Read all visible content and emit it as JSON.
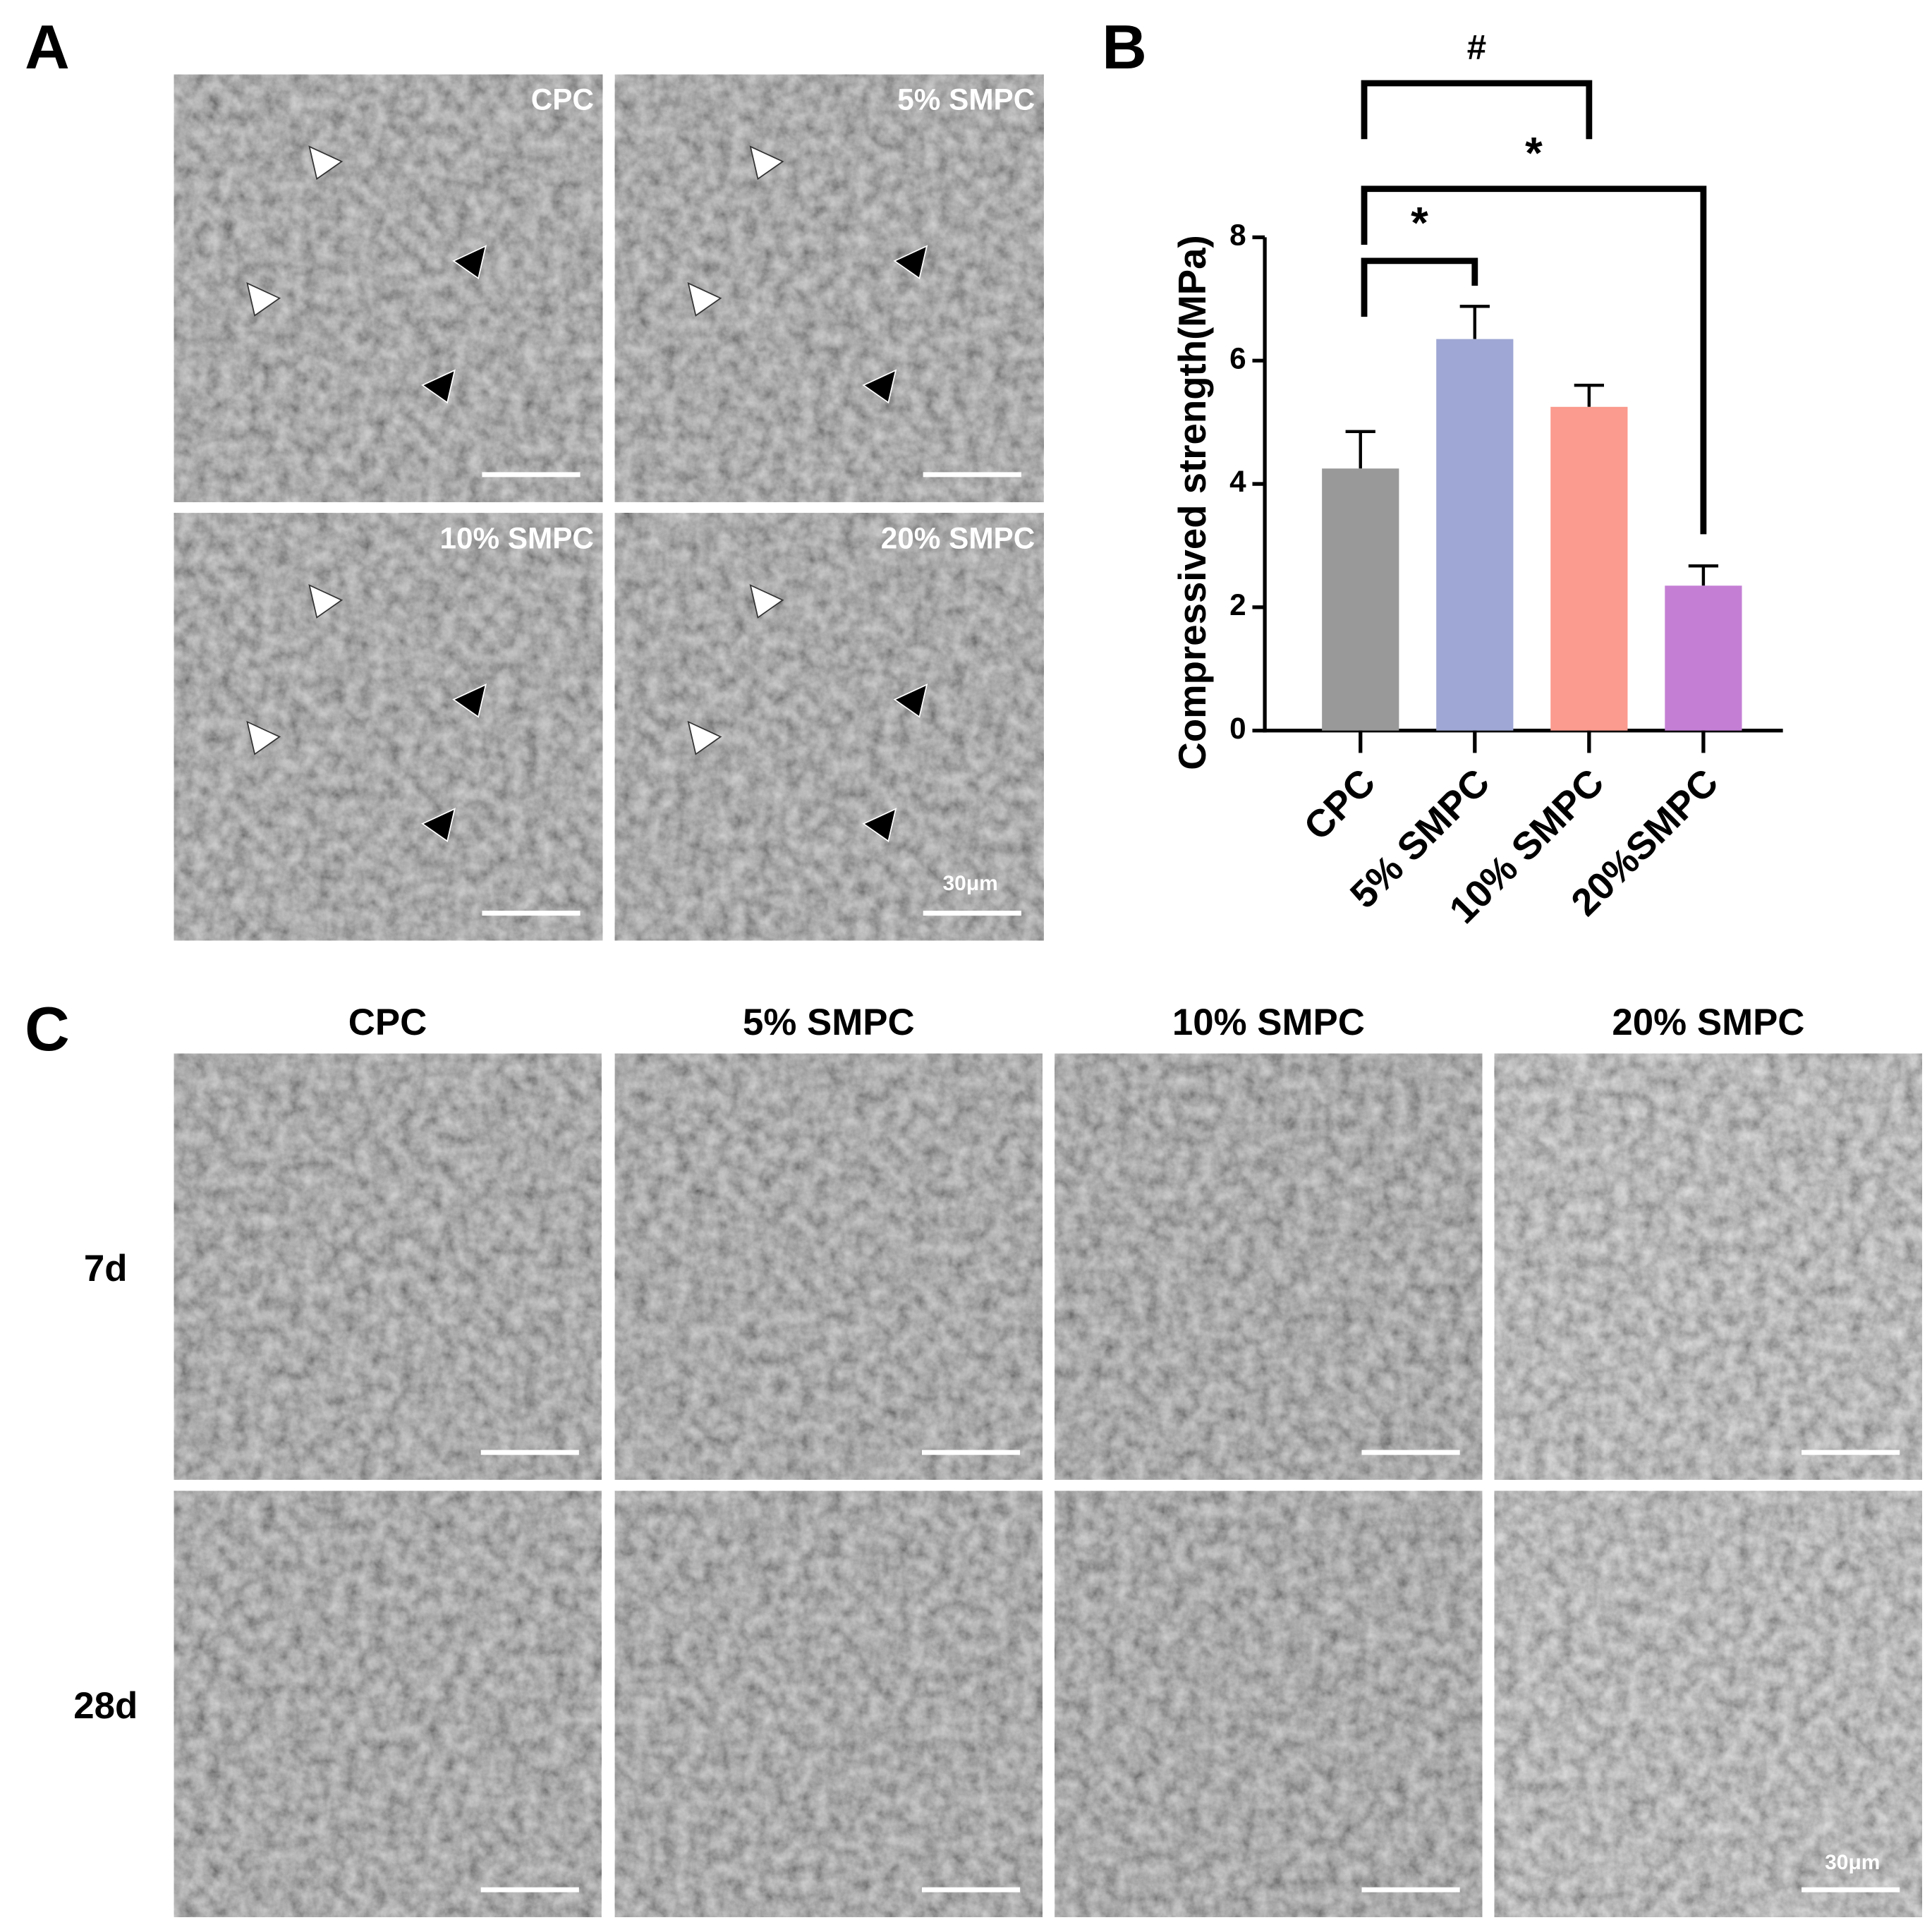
{
  "panel_labels": [
    "A",
    "B",
    "C"
  ],
  "panel_a": {
    "image_labels": [
      "CPC",
      "5% SMPC",
      "10% SMPC",
      "20% SMPC"
    ],
    "scale_bar": "30μm"
  },
  "chart_data": {
    "type": "bar",
    "y_label": "Compressived strength(MPa)",
    "categories": [
      "CPC",
      "5% SMPC",
      "10% SMPC",
      "20%SMPC"
    ],
    "values": [
      4.25,
      6.35,
      5.25,
      2.35
    ],
    "errors": [
      0.6,
      0.53,
      0.35,
      0.32
    ],
    "colors": [
      "#999999",
      "#9fa8d4",
      "#fb9a8e",
      "#c47fd4"
    ],
    "ylim": [
      0,
      8
    ],
    "yticks": [
      0,
      2,
      4,
      6,
      8
    ],
    "annotations": [
      "#",
      "*",
      "*"
    ]
  },
  "panel_c": {
    "columns": [
      "CPC",
      "5% SMPC",
      "10% SMPC",
      "20% SMPC"
    ],
    "rows": [
      "7d",
      "28d"
    ],
    "scale_bar": "30μm"
  }
}
